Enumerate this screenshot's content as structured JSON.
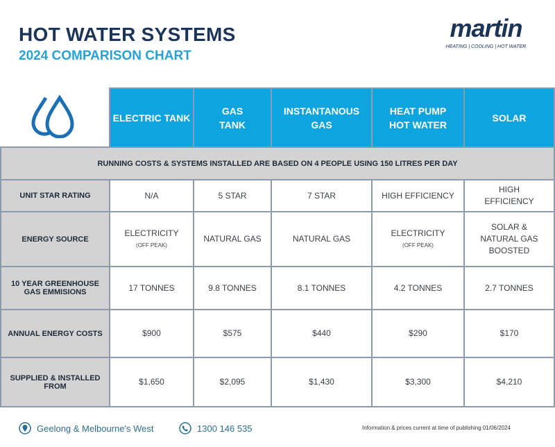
{
  "header": {
    "title": "HOT WATER SYSTEMS",
    "subtitle": "2024 COMPARISON CHART"
  },
  "logo": {
    "word": "martin",
    "tagline": "HEATING | COOLING | HOT WATER"
  },
  "columns": [
    "ELECTRIC TANK",
    "GAS TANK",
    "INSTANTANOUS GAS",
    "HEAT PUMP HOT WATER",
    "SOLAR"
  ],
  "note": "RUNNING COSTS & SYSTEMS INSTALLED ARE BASED ON 4 PEOPLE USING 150 LITRES PER DAY",
  "rows": [
    {
      "label": "UNIT STAR RATING",
      "cells": [
        {
          "v": "N/A"
        },
        {
          "v": "5 STAR"
        },
        {
          "v": "7 STAR"
        },
        {
          "v": "HIGH EFFICIENCY"
        },
        {
          "v": "HIGH EFFICIENCY"
        }
      ]
    },
    {
      "label": "ENERGY SOURCE",
      "cells": [
        {
          "v": "ELECTRICITY",
          "s": "(OFF PEAK)"
        },
        {
          "v": "NATURAL GAS"
        },
        {
          "v": "NATURAL GAS"
        },
        {
          "v": "ELECTRICITY",
          "s": "(OFF PEAK)"
        },
        {
          "v": "SOLAR & NATURAL GAS BOOSTED"
        }
      ]
    },
    {
      "label": "10 YEAR GREENHOUSE GAS EMMISIONS",
      "cells": [
        {
          "v": "17 TONNES"
        },
        {
          "v": "9.8 TONNES"
        },
        {
          "v": "8.1 TONNES"
        },
        {
          "v": "4.2 TONNES"
        },
        {
          "v": "2.7 TONNES"
        }
      ]
    },
    {
      "label": "ANNUAL ENERGY COSTS",
      "cells": [
        {
          "v": "$900"
        },
        {
          "v": "$575"
        },
        {
          "v": "$440"
        },
        {
          "v": "$290"
        },
        {
          "v": "$170"
        }
      ]
    },
    {
      "label": "SUPPLIED & INSTALLED FROM",
      "cells": [
        {
          "v": "$1,650"
        },
        {
          "v": "$2,095"
        },
        {
          "v": "$1,430"
        },
        {
          "v": "$3,300"
        },
        {
          "v": "$4,210"
        }
      ]
    }
  ],
  "footer": {
    "location": "Geelong & Melbourne's West",
    "phone": "1300 146 535",
    "note": "Information & prices current at time of publishing 01/06/2024"
  }
}
